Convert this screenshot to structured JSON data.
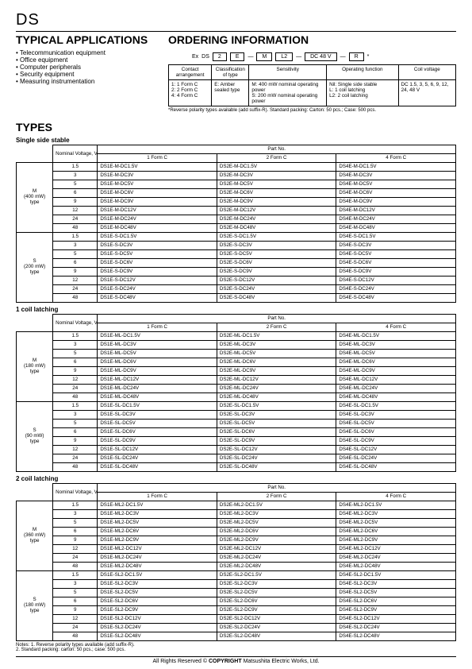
{
  "title": "DS",
  "sections": {
    "apps": {
      "heading": "TYPICAL APPLICATIONS",
      "items": [
        "Telecommunication equipment",
        "Office equipment",
        "Computer peripherals",
        "Security equipment",
        "Measuring instrumentation"
      ]
    },
    "order": {
      "heading": "ORDERING INFORMATION",
      "example": {
        "prefix": "Ex",
        "base": "DS",
        "b1": "2",
        "b2": "E",
        "b3": "M",
        "b4": "L2",
        "b5": "DC 48 V",
        "b6": "R"
      },
      "headers": [
        "Contact arrangement",
        "Classification of type",
        "Sensitivity",
        "Operating function",
        "Coil voltage"
      ],
      "cells": [
        "1: 1 Form C\n2: 2 Form C\n4: 4 Form C",
        "E: Amber sealed type",
        "M: 400 mW nominal operating power\nS: 200 mW nominal operating power",
        "Nil: Single side stable\nL: 1 coil latching\nL2: 2 coil latching",
        "DC 1.5, 3, 5, 6, 9, 12, 24, 48 V"
      ],
      "note": "*Reverse polarity types available (add suffix-R).   Standard packing: Carton: 50 pcs.; Case: 500 pcs."
    },
    "types": "TYPES"
  },
  "tableHdrs": {
    "nomV": "Nominal Voltage, V DC",
    "partNo": "Part No.",
    "f1": "1 Form C",
    "f2": "2 Form C",
    "f4": "4 Form C"
  },
  "voltages": [
    "1.5",
    "3",
    "5",
    "6",
    "9",
    "12",
    "24",
    "48"
  ],
  "tables": [
    {
      "title": "Single side stable",
      "groups": [
        {
          "lbl": "M\n(400 mW)\ntype",
          "code": [
            "DS1E-M-DC",
            "DS2E-M-DC",
            "DS4E-M-DC"
          ]
        },
        {
          "lbl": "S\n(200 mW)\ntype",
          "code": [
            "DS1E-S-DC",
            "DS2E-S-DC",
            "DS4E-S-DC"
          ]
        }
      ]
    },
    {
      "title": "1 coil latching",
      "groups": [
        {
          "lbl": "M\n(180 mW)\ntype",
          "code": [
            "DS1E-ML-DC",
            "DS2E-ML-DC",
            "DS4E-ML-DC"
          ]
        },
        {
          "lbl": "S\n(90 mW)\ntype",
          "code": [
            "DS1E-SL-DC",
            "DS2E-SL-DC",
            "DS4E-SL-DC"
          ]
        }
      ]
    },
    {
      "title": "2 coil latching",
      "groups": [
        {
          "lbl": "M\n(360 mW)\ntype",
          "code": [
            "DS1E-ML2-DC",
            "DS2E-ML2-DC",
            "DS4E-ML2-DC"
          ]
        },
        {
          "lbl": "S\n(180 mW)\ntype",
          "code": [
            "DS1E-SL2-DC",
            "DS2E-SL2-DC",
            "DS4E-SL2-DC"
          ]
        }
      ]
    }
  ],
  "notes": "Notes: 1. Reverse polarity types available (add suffix-R).\n2. Standard packing: carton: 50 pcs.; case: 500 pcs.",
  "footer": {
    "a": "All Rights Reserved © ",
    "b": "COPYRIGHT",
    "c": " Matsushita Electric Works, Ltd."
  }
}
